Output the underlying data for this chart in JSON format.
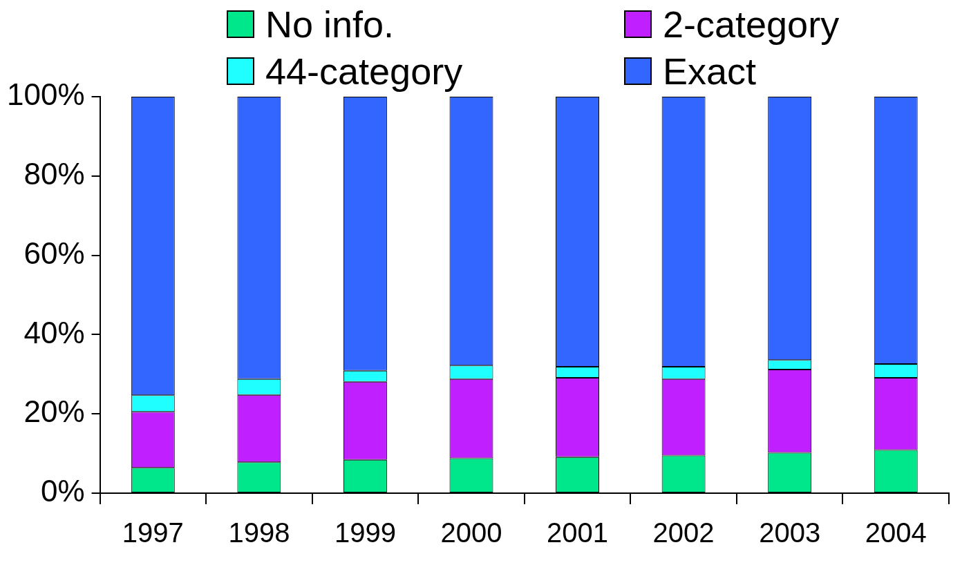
{
  "chart_data": {
    "type": "bar",
    "stacked": true,
    "categories": [
      "1997",
      "1998",
      "1999",
      "2000",
      "2001",
      "2002",
      "2003",
      "2004"
    ],
    "series": [
      {
        "name": "No info.",
        "color": "#00e68a",
        "values": [
          6.4,
          7.8,
          8.4,
          8.8,
          9.1,
          9.5,
          10.2,
          10.9
        ]
      },
      {
        "name": "2-category",
        "color": "#c020ff",
        "values": [
          14.1,
          17.0,
          19.7,
          20.0,
          20.0,
          19.3,
          21.0,
          18.2
        ]
      },
      {
        "name": "44-category",
        "color": "#20ffff",
        "values": [
          4.2,
          4.0,
          2.8,
          3.4,
          2.8,
          3.1,
          2.4,
          3.5
        ]
      },
      {
        "name": "Exact",
        "color": "#3366ff",
        "values": [
          75.3,
          71.2,
          69.1,
          67.8,
          68.1,
          68.1,
          66.4,
          67.4
        ]
      }
    ],
    "ylim": [
      0,
      100
    ],
    "yticks": [
      {
        "value": 0,
        "label": "0%"
      },
      {
        "value": 20,
        "label": "20%"
      },
      {
        "value": 40,
        "label": "40%"
      },
      {
        "value": 60,
        "label": "60%"
      },
      {
        "value": 80,
        "label": "80%"
      },
      {
        "value": 100,
        "label": "100%"
      }
    ],
    "grid": false,
    "legend": "top"
  }
}
